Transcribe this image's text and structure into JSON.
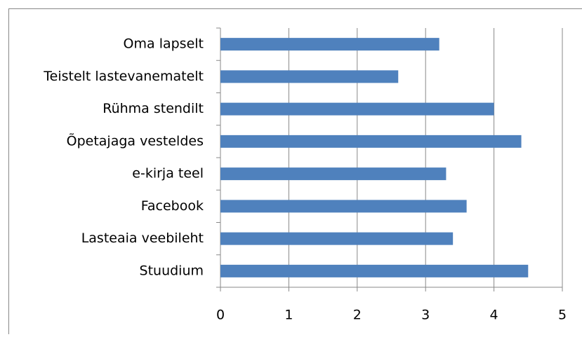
{
  "chart_data": {
    "type": "hbar",
    "categories": [
      "Oma lapselt",
      "Teistelt lastevanematelt",
      "Rühma stendilt",
      "Õpetajaga vesteldes",
      "e-kirja teel",
      "Facebook",
      "Lasteaia veebileht",
      "Stuudium"
    ],
    "values": [
      3.2,
      2.6,
      4,
      4.4,
      3.3,
      3.6,
      3.4,
      4.5
    ],
    "color": "#4f81bd",
    "xlim": [
      0,
      5
    ],
    "xticks": [
      0,
      1,
      2,
      3,
      4,
      5
    ],
    "grid": true
  }
}
